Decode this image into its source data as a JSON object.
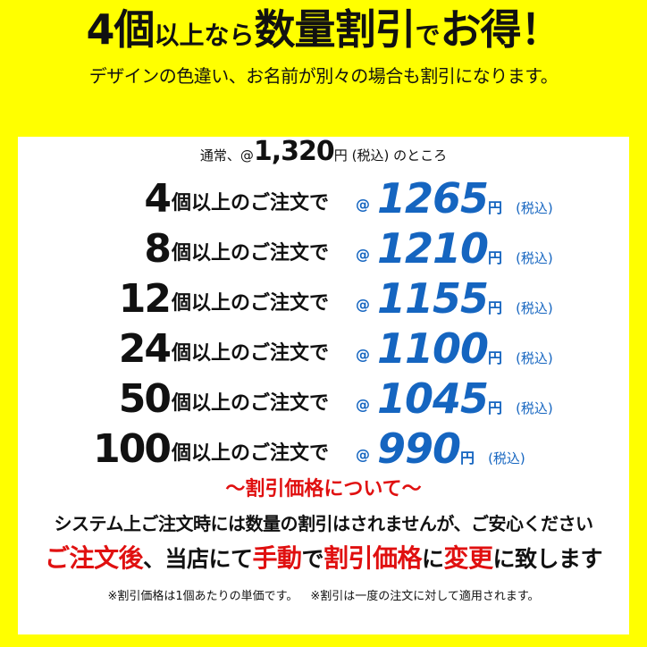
{
  "header": {
    "title_parts": [
      "4個",
      "以上なら",
      "数量割引",
      "で",
      "お得！"
    ],
    "subtitle": "デザインの色違い、お名前が別々の場合も割引になります。"
  },
  "normal_price": {
    "prefix": "通常、@",
    "price": "1,320",
    "yen": "円",
    "tax": "(税込)",
    "suffix": "のところ"
  },
  "tiers": [
    {
      "qty": "4",
      "condition": "個以上のご注文で",
      "at": "@",
      "price": "1265",
      "yen": "円",
      "tax": "(税込)"
    },
    {
      "qty": "8",
      "condition": "個以上のご注文で",
      "at": "@",
      "price": "1210",
      "yen": "円",
      "tax": "(税込)"
    },
    {
      "qty": "12",
      "condition": "個以上のご注文で",
      "at": "@",
      "price": "1155",
      "yen": "円",
      "tax": "(税込)"
    },
    {
      "qty": "24",
      "condition": "個以上のご注文で",
      "at": "@",
      "price": "1100",
      "yen": "円",
      "tax": "(税込)"
    },
    {
      "qty": "50",
      "condition": "個以上のご注文で",
      "at": "@",
      "price": "1045",
      "yen": "円",
      "tax": "(税込)"
    },
    {
      "qty": "100",
      "condition": "個以上のご注文で",
      "at": "@",
      "price": "990",
      "yen": "円",
      "tax": "(税込)"
    }
  ],
  "about": {
    "heading": "～割引価格について～",
    "line1": "システム上ご注文時には数量の割引はされませんが、ご安心ください",
    "line2_parts": [
      "ご注文後",
      "、当店にて",
      "手動",
      "で",
      "割引価格",
      "に",
      "変更",
      "に致します"
    ],
    "footnote1": "※割引価格は1個あたりの単価です。",
    "footnote2": "※割引は一度の注文に対して適用されます。"
  },
  "colors": {
    "background": "#ffff00",
    "price_blue": "#1565c0",
    "accent_red": "#e01010"
  }
}
